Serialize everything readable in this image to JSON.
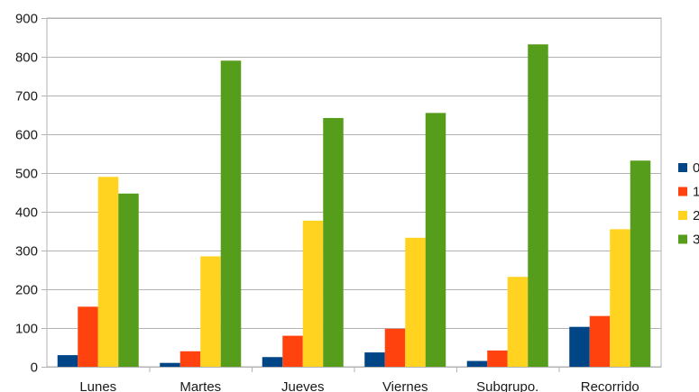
{
  "chart_data": {
    "type": "bar",
    "title": "",
    "xlabel": "",
    "ylabel": "",
    "categories": [
      "Lunes",
      "Martes",
      "Jueves",
      "Viernes",
      "Subgrupo.",
      "Recorrido"
    ],
    "series": [
      {
        "name": "0",
        "color": "#004586",
        "values": [
          30,
          10,
          25,
          37,
          15,
          103
        ]
      },
      {
        "name": "1",
        "color": "#ff420e",
        "values": [
          155,
          40,
          80,
          98,
          42,
          131
        ]
      },
      {
        "name": "2",
        "color": "#ffd320",
        "values": [
          490,
          285,
          377,
          333,
          232,
          355
        ]
      },
      {
        "name": "3",
        "color": "#579d1c",
        "values": [
          447,
          790,
          642,
          655,
          832,
          532
        ]
      }
    ],
    "ylim": [
      0,
      900
    ],
    "yticks": [
      "0",
      "100",
      "200",
      "300",
      "400",
      "500",
      "600",
      "700",
      "800",
      "900"
    ],
    "grid": true,
    "legend": "right"
  }
}
